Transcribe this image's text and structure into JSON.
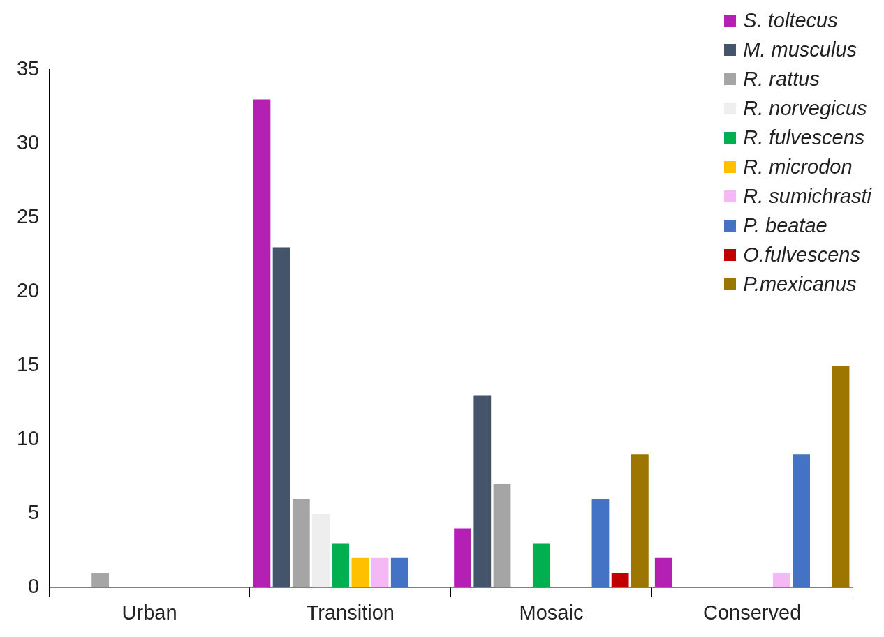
{
  "chart_data": {
    "type": "bar",
    "categories": [
      "Urban",
      "Transition",
      "Mosaic",
      "Conserved"
    ],
    "series": [
      {
        "name": "S. toltecus",
        "color": "#b41fb4",
        "values": [
          0,
          33,
          4,
          2
        ]
      },
      {
        "name": "M. musculus",
        "color": "#44546a",
        "values": [
          0,
          23,
          13,
          0
        ]
      },
      {
        "name": "R. rattus",
        "color": "#a5a5a5",
        "values": [
          1,
          6,
          7,
          0
        ]
      },
      {
        "name": "R. norvegicus",
        "color": "#eeeeee",
        "values": [
          0,
          5,
          0,
          0
        ]
      },
      {
        "name": "R. fulvescens",
        "color": "#00b050",
        "values": [
          0,
          3,
          3,
          0
        ]
      },
      {
        "name": "R. microdon",
        "color": "#ffc000",
        "values": [
          0,
          2,
          0,
          0
        ]
      },
      {
        "name": "R. sumichrasti",
        "color": "#f4b8f4",
        "values": [
          0,
          2,
          0,
          1
        ]
      },
      {
        "name": "P. beatae",
        "color": "#4472c4",
        "values": [
          0,
          2,
          6,
          9
        ]
      },
      {
        "name": "O.fulvescens",
        "color": "#c00000",
        "values": [
          0,
          0,
          1,
          0
        ]
      },
      {
        "name": "P.mexicanus",
        "color": "#9c7600",
        "values": [
          0,
          0,
          9,
          15
        ]
      }
    ],
    "ylim": [
      0,
      35
    ],
    "yticks": [
      0,
      5,
      10,
      15,
      20,
      25,
      30,
      35
    ],
    "grid": false,
    "legend": "top right"
  }
}
